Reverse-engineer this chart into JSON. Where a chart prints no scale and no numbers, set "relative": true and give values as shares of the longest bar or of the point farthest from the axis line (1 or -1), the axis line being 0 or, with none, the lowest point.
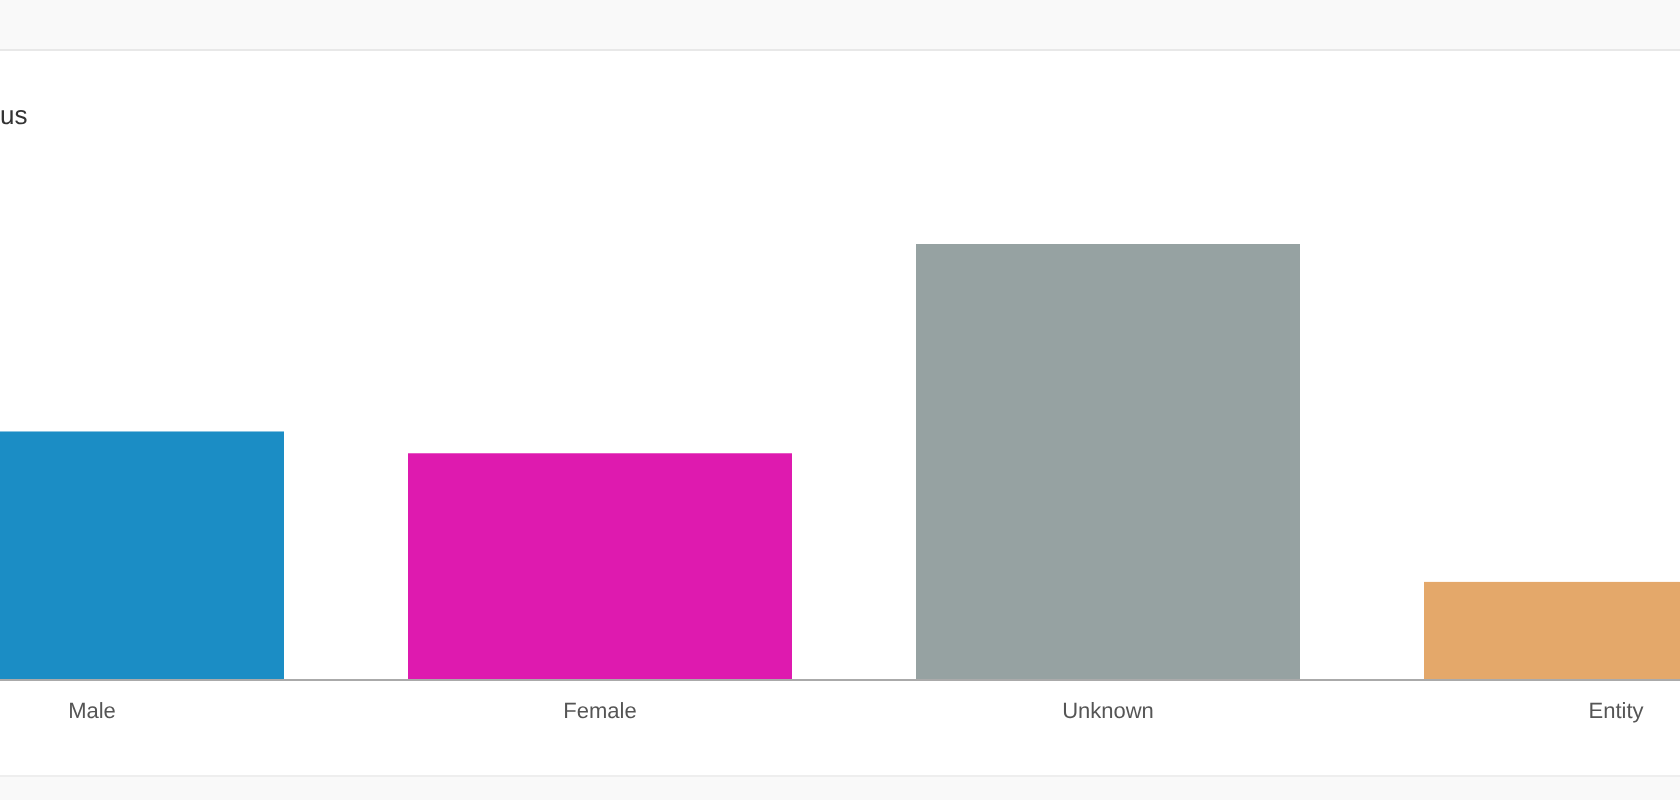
{
  "chart_data": {
    "type": "bar",
    "title": "us",
    "categories": [
      "Male",
      "Female",
      "Unknown",
      "Entity"
    ],
    "values": [
      0.57,
      0.52,
      1,
      0.225
    ],
    "colors": [
      "#1b8dc5",
      "#de1aaf",
      "#96a2a2",
      "#e4a86a"
    ],
    "relative": true
  }
}
